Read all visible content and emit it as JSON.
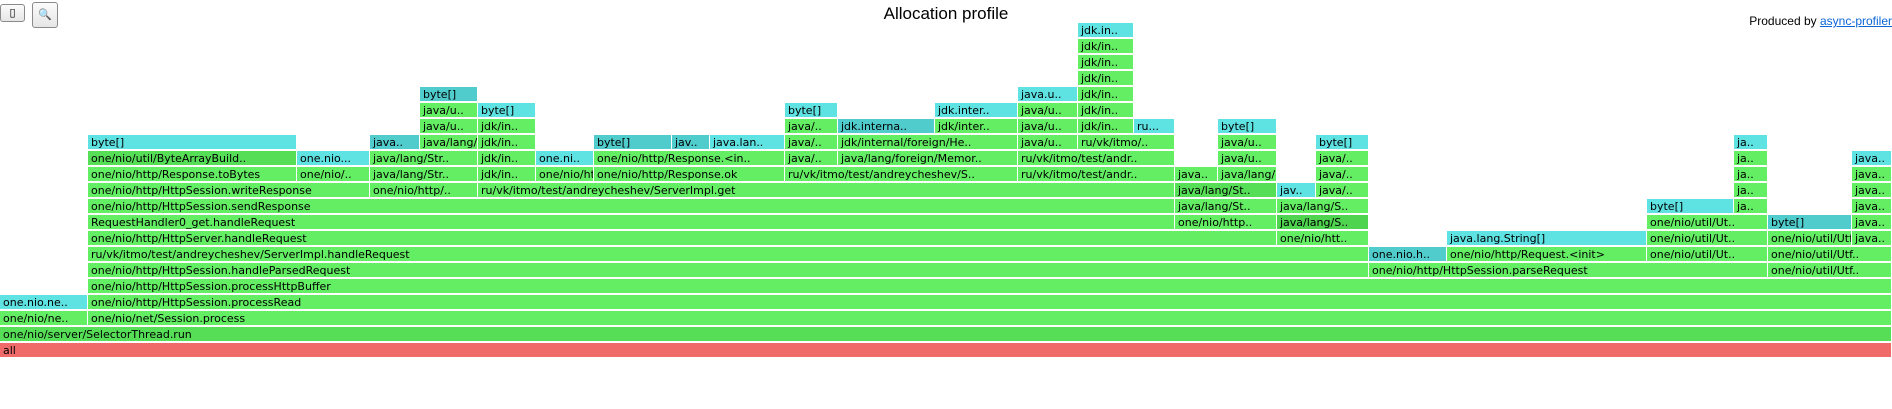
{
  "header": {
    "title": "Allocation profile",
    "produced_by": "Produced by ",
    "produced_link": "async-profiler"
  },
  "toolbar": {
    "reverse_glyph": "▯",
    "search_glyph": "🔍"
  },
  "colors": {
    "green": "#63ee63",
    "green_mid": "#56df56",
    "green_dark": "#4fd44f",
    "cyan": "#5fe2e2",
    "cyan_dark": "#50cccc",
    "root": "#f06a6a"
  },
  "frames": [
    {
      "level": 0,
      "start": 0,
      "end": 1892,
      "label": "all",
      "color": "root"
    },
    {
      "level": 1,
      "start": 0,
      "end": 1892,
      "label": "one/nio/server/SelectorThread.run",
      "color": "green_mid"
    },
    {
      "level": 2,
      "start": 0,
      "end": 88,
      "label": "one/nio/ne..",
      "color": "green"
    },
    {
      "level": 2,
      "start": 88,
      "end": 1892,
      "label": "one/nio/net/Session.process",
      "color": "green"
    },
    {
      "level": 3,
      "start": 0,
      "end": 88,
      "label": "one.nio.ne..",
      "color": "cyan"
    },
    {
      "level": 3,
      "start": 88,
      "end": 1892,
      "label": "one/nio/http/HttpSession.processRead",
      "color": "green"
    },
    {
      "level": 4,
      "start": 88,
      "end": 1892,
      "label": "one/nio/http/HttpSession.processHttpBuffer",
      "color": "green"
    },
    {
      "level": 5,
      "start": 88,
      "end": 1369,
      "label": "one/nio/http/HttpSession.handleParsedRequest",
      "color": "green"
    },
    {
      "level": 5,
      "start": 1369,
      "end": 1768,
      "label": "one/nio/http/HttpSession.parseRequest",
      "color": "green"
    },
    {
      "level": 5,
      "start": 1768,
      "end": 1892,
      "label": "one/nio/util/Utf..",
      "color": "green"
    },
    {
      "level": 6,
      "start": 88,
      "end": 1369,
      "label": "ru/vk/itmo/test/andreycheshev/ServerImpl.handleRequest",
      "color": "green"
    },
    {
      "level": 6,
      "start": 1369,
      "end": 1447,
      "label": "one.nio.h..",
      "color": "cyan_dark"
    },
    {
      "level": 6,
      "start": 1447,
      "end": 1647,
      "label": "one/nio/http/Request.<init>",
      "color": "green"
    },
    {
      "level": 6,
      "start": 1647,
      "end": 1768,
      "label": "one/nio/util/Ut..",
      "color": "green"
    },
    {
      "level": 6,
      "start": 1768,
      "end": 1892,
      "label": "one/nio/util/Utf..",
      "color": "green"
    },
    {
      "level": 7,
      "start": 88,
      "end": 1277,
      "label": "one/nio/http/HttpServer.handleRequest",
      "color": "green"
    },
    {
      "level": 7,
      "start": 1277,
      "end": 1369,
      "label": "one/nio/htt..",
      "color": "green"
    },
    {
      "level": 7,
      "start": 1447,
      "end": 1647,
      "label": "java.lang.String[]",
      "color": "cyan"
    },
    {
      "level": 7,
      "start": 1647,
      "end": 1768,
      "label": "one/nio/util/Ut..",
      "color": "green"
    },
    {
      "level": 7,
      "start": 1768,
      "end": 1852,
      "label": "one/nio/util/Utf..",
      "color": "green"
    },
    {
      "level": 7,
      "start": 1852,
      "end": 1892,
      "label": "java..",
      "color": "green"
    },
    {
      "level": 8,
      "start": 88,
      "end": 1175,
      "label": "RequestHandler0_get.handleRequest",
      "color": "green"
    },
    {
      "level": 8,
      "start": 1175,
      "end": 1277,
      "label": "one/nio/http..",
      "color": "green"
    },
    {
      "level": 8,
      "start": 1277,
      "end": 1369,
      "label": "java/lang/S..",
      "color": "green_dark"
    },
    {
      "level": 8,
      "start": 1647,
      "end": 1768,
      "label": "one/nio/util/Ut..",
      "color": "green"
    },
    {
      "level": 8,
      "start": 1768,
      "end": 1852,
      "label": "byte[]",
      "color": "cyan_dark"
    },
    {
      "level": 8,
      "start": 1852,
      "end": 1892,
      "label": "java..",
      "color": "green"
    },
    {
      "level": 9,
      "start": 88,
      "end": 1175,
      "label": "one/nio/http/HttpSession.sendResponse",
      "color": "green"
    },
    {
      "level": 9,
      "start": 1175,
      "end": 1277,
      "label": "java/lang/St..",
      "color": "green"
    },
    {
      "level": 9,
      "start": 1277,
      "end": 1369,
      "label": "java/lang/S..",
      "color": "green"
    },
    {
      "level": 9,
      "start": 1647,
      "end": 1734,
      "label": "byte[]",
      "color": "cyan"
    },
    {
      "level": 9,
      "start": 1734,
      "end": 1768,
      "label": "ja..",
      "color": "green"
    },
    {
      "level": 9,
      "start": 1852,
      "end": 1892,
      "label": "java..",
      "color": "green"
    },
    {
      "level": 10,
      "start": 88,
      "end": 370,
      "label": "one/nio/http/HttpSession.writeResponse",
      "color": "green"
    },
    {
      "level": 10,
      "start": 370,
      "end": 478,
      "label": "one/nio/http/..",
      "color": "green"
    },
    {
      "level": 10,
      "start": 478,
      "end": 1175,
      "label": "ru/vk/itmo/test/andreycheshev/ServerImpl.get",
      "color": "green"
    },
    {
      "level": 10,
      "start": 1175,
      "end": 1277,
      "label": "java/lang/St..",
      "color": "green_mid"
    },
    {
      "level": 10,
      "start": 1277,
      "end": 1316,
      "label": "jav..",
      "color": "cyan"
    },
    {
      "level": 10,
      "start": 1316,
      "end": 1369,
      "label": "java/..",
      "color": "green"
    },
    {
      "level": 10,
      "start": 1734,
      "end": 1768,
      "label": "ja..",
      "color": "green"
    },
    {
      "level": 10,
      "start": 1852,
      "end": 1892,
      "label": "java..",
      "color": "green"
    },
    {
      "level": 11,
      "start": 88,
      "end": 297,
      "label": "one/nio/http/Response.toBytes",
      "color": "green"
    },
    {
      "level": 11,
      "start": 297,
      "end": 370,
      "label": "one/nio/..",
      "color": "green"
    },
    {
      "level": 11,
      "start": 370,
      "end": 478,
      "label": "java/lang/Str..",
      "color": "green"
    },
    {
      "level": 11,
      "start": 478,
      "end": 536,
      "label": "jdk/in..",
      "color": "green"
    },
    {
      "level": 11,
      "start": 536,
      "end": 594,
      "label": "one/nio/http/Response.ok",
      "color": "green"
    },
    {
      "level": 11,
      "start": 594,
      "end": 785,
      "label": "one/nio/http/Response.ok",
      "color": "green"
    },
    {
      "level": 11,
      "start": 785,
      "end": 1018,
      "label": "ru/vk/itmo/test/andreycheshev/S..",
      "color": "green"
    },
    {
      "level": 11,
      "start": 1018,
      "end": 1175,
      "label": "ru/vk/itmo/test/andr..",
      "color": "green"
    },
    {
      "level": 11,
      "start": 1175,
      "end": 1218,
      "label": "java..",
      "color": "green"
    },
    {
      "level": 11,
      "start": 1218,
      "end": 1277,
      "label": "java/lang/St..",
      "color": "green"
    },
    {
      "level": 11,
      "start": 1316,
      "end": 1369,
      "label": "java/..",
      "color": "green"
    },
    {
      "level": 11,
      "start": 1734,
      "end": 1768,
      "label": "ja..",
      "color": "green"
    },
    {
      "level": 11,
      "start": 1852,
      "end": 1892,
      "label": "java..",
      "color": "green"
    },
    {
      "level": 12,
      "start": 88,
      "end": 297,
      "label": "one/nio/util/ByteArrayBuild..",
      "color": "green_mid"
    },
    {
      "level": 12,
      "start": 297,
      "end": 370,
      "label": "one.nio...",
      "color": "cyan"
    },
    {
      "level": 12,
      "start": 370,
      "end": 478,
      "label": "java/lang/Str..",
      "color": "green"
    },
    {
      "level": 12,
      "start": 478,
      "end": 536,
      "label": "jdk/in..",
      "color": "green"
    },
    {
      "level": 12,
      "start": 536,
      "end": 594,
      "label": "one.ni..",
      "color": "cyan"
    },
    {
      "level": 12,
      "start": 594,
      "end": 785,
      "label": "one/nio/http/Response.<in..",
      "color": "green"
    },
    {
      "level": 12,
      "start": 785,
      "end": 838,
      "label": "java/..",
      "color": "green"
    },
    {
      "level": 12,
      "start": 838,
      "end": 1018,
      "label": "java/lang/foreign/Memor..",
      "color": "green"
    },
    {
      "level": 12,
      "start": 1018,
      "end": 1175,
      "label": "ru/vk/itmo/test/andr..",
      "color": "green"
    },
    {
      "level": 12,
      "start": 1218,
      "end": 1277,
      "label": "java/u..",
      "color": "green"
    },
    {
      "level": 12,
      "start": 1316,
      "end": 1369,
      "label": "java/..",
      "color": "green"
    },
    {
      "level": 12,
      "start": 1734,
      "end": 1768,
      "label": "ja..",
      "color": "green"
    },
    {
      "level": 12,
      "start": 1852,
      "end": 1892,
      "label": "java..",
      "color": "cyan"
    },
    {
      "level": 13,
      "start": 88,
      "end": 297,
      "label": "byte[]",
      "color": "cyan"
    },
    {
      "level": 13,
      "start": 370,
      "end": 420,
      "label": "java..",
      "color": "cyan_dark"
    },
    {
      "level": 13,
      "start": 420,
      "end": 478,
      "label": "java/lang/Str..",
      "color": "green"
    },
    {
      "level": 13,
      "start": 478,
      "end": 536,
      "label": "jdk/in..",
      "color": "green"
    },
    {
      "level": 13,
      "start": 594,
      "end": 672,
      "label": "byte[]",
      "color": "cyan_dark"
    },
    {
      "level": 13,
      "start": 672,
      "end": 710,
      "label": "jav..",
      "color": "cyan_dark"
    },
    {
      "level": 13,
      "start": 710,
      "end": 785,
      "label": "java.lan..",
      "color": "cyan"
    },
    {
      "level": 13,
      "start": 785,
      "end": 838,
      "label": "java/..",
      "color": "green"
    },
    {
      "level": 13,
      "start": 838,
      "end": 1018,
      "label": "jdk/internal/foreign/He..",
      "color": "green"
    },
    {
      "level": 13,
      "start": 1018,
      "end": 1078,
      "label": "java/u..",
      "color": "green"
    },
    {
      "level": 13,
      "start": 1078,
      "end": 1175,
      "label": "ru/vk/itmo/..",
      "color": "green"
    },
    {
      "level": 13,
      "start": 1218,
      "end": 1277,
      "label": "java/u..",
      "color": "green"
    },
    {
      "level": 13,
      "start": 1316,
      "end": 1369,
      "label": "byte[]",
      "color": "cyan"
    },
    {
      "level": 13,
      "start": 1734,
      "end": 1768,
      "label": "ja..",
      "color": "cyan"
    },
    {
      "level": 14,
      "start": 420,
      "end": 478,
      "label": "java/u..",
      "color": "green"
    },
    {
      "level": 14,
      "start": 478,
      "end": 536,
      "label": "jdk/in..",
      "color": "green"
    },
    {
      "level": 14,
      "start": 785,
      "end": 838,
      "label": "java/..",
      "color": "green"
    },
    {
      "level": 14,
      "start": 838,
      "end": 935,
      "label": "jdk.interna..",
      "color": "cyan_dark"
    },
    {
      "level": 14,
      "start": 935,
      "end": 1018,
      "label": "jdk/inter..",
      "color": "green"
    },
    {
      "level": 14,
      "start": 1018,
      "end": 1078,
      "label": "java/u..",
      "color": "green"
    },
    {
      "level": 14,
      "start": 1078,
      "end": 1134,
      "label": "jdk/in..",
      "color": "green"
    },
    {
      "level": 14,
      "start": 1134,
      "end": 1175,
      "label": "ru...",
      "color": "cyan"
    },
    {
      "level": 14,
      "start": 1218,
      "end": 1277,
      "label": "byte[]",
      "color": "cyan"
    },
    {
      "level": 15,
      "start": 420,
      "end": 478,
      "label": "java/u..",
      "color": "green"
    },
    {
      "level": 15,
      "start": 478,
      "end": 536,
      "label": "byte[]",
      "color": "cyan"
    },
    {
      "level": 15,
      "start": 785,
      "end": 838,
      "label": "byte[]",
      "color": "cyan"
    },
    {
      "level": 15,
      "start": 935,
      "end": 1018,
      "label": "jdk.inter..",
      "color": "cyan"
    },
    {
      "level": 15,
      "start": 1018,
      "end": 1078,
      "label": "java/u..",
      "color": "green"
    },
    {
      "level": 15,
      "start": 1078,
      "end": 1134,
      "label": "jdk/in..",
      "color": "green"
    },
    {
      "level": 16,
      "start": 420,
      "end": 478,
      "label": "byte[]",
      "color": "cyan_dark"
    },
    {
      "level": 16,
      "start": 1018,
      "end": 1078,
      "label": "java.u..",
      "color": "cyan"
    },
    {
      "level": 16,
      "start": 1078,
      "end": 1134,
      "label": "jdk/in..",
      "color": "green"
    },
    {
      "level": 17,
      "start": 1078,
      "end": 1134,
      "label": "jdk/in..",
      "color": "green"
    },
    {
      "level": 18,
      "start": 1078,
      "end": 1134,
      "label": "jdk/in..",
      "color": "green"
    },
    {
      "level": 19,
      "start": 1078,
      "end": 1134,
      "label": "jdk/in..",
      "color": "green"
    },
    {
      "level": 20,
      "start": 1078,
      "end": 1134,
      "label": "jdk.in..",
      "color": "cyan"
    }
  ]
}
